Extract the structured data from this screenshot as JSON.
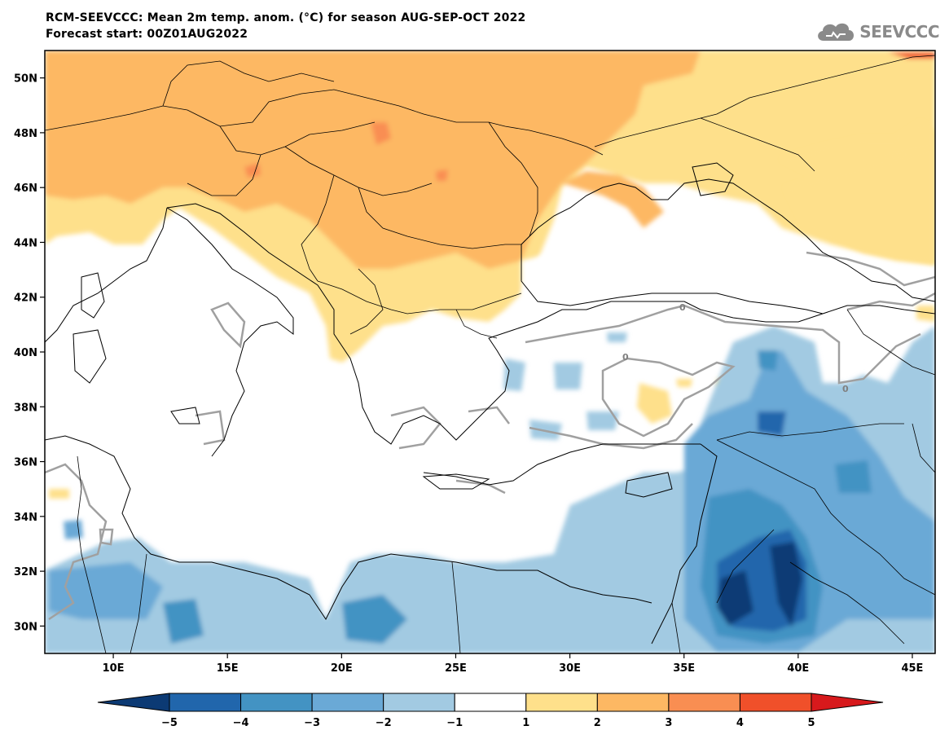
{
  "header": {
    "title_line1": "RCM-SEEVCCC: Mean 2m temp. anom. (°C) for season AUG-SEP-OCT 2022",
    "title_line2": "Forecast start: 00Z01AUG2022",
    "logo_text": "SEEVCCC"
  },
  "map": {
    "lon_range": [
      7,
      46
    ],
    "lat_range": [
      29,
      51
    ],
    "lon_ticks": [
      "10E",
      "15E",
      "20E",
      "25E",
      "30E",
      "35E",
      "40E",
      "45E"
    ],
    "lat_ticks": [
      "30N",
      "32N",
      "34N",
      "36N",
      "38N",
      "40N",
      "42N",
      "44N",
      "46N",
      "48N",
      "50N"
    ],
    "contour_label": "0"
  },
  "colorbar": {
    "ticks": [
      "−5",
      "−4",
      "−3",
      "−2",
      "−1",
      "1",
      "2",
      "3",
      "4",
      "5"
    ],
    "colors": [
      "#0c3a74",
      "#2166ac",
      "#4393c3",
      "#6aa9d6",
      "#a2cae2",
      "#ffffff",
      "#fee08b",
      "#fdb863",
      "#f98e52",
      "#f0502a",
      "#d7191c"
    ]
  }
}
